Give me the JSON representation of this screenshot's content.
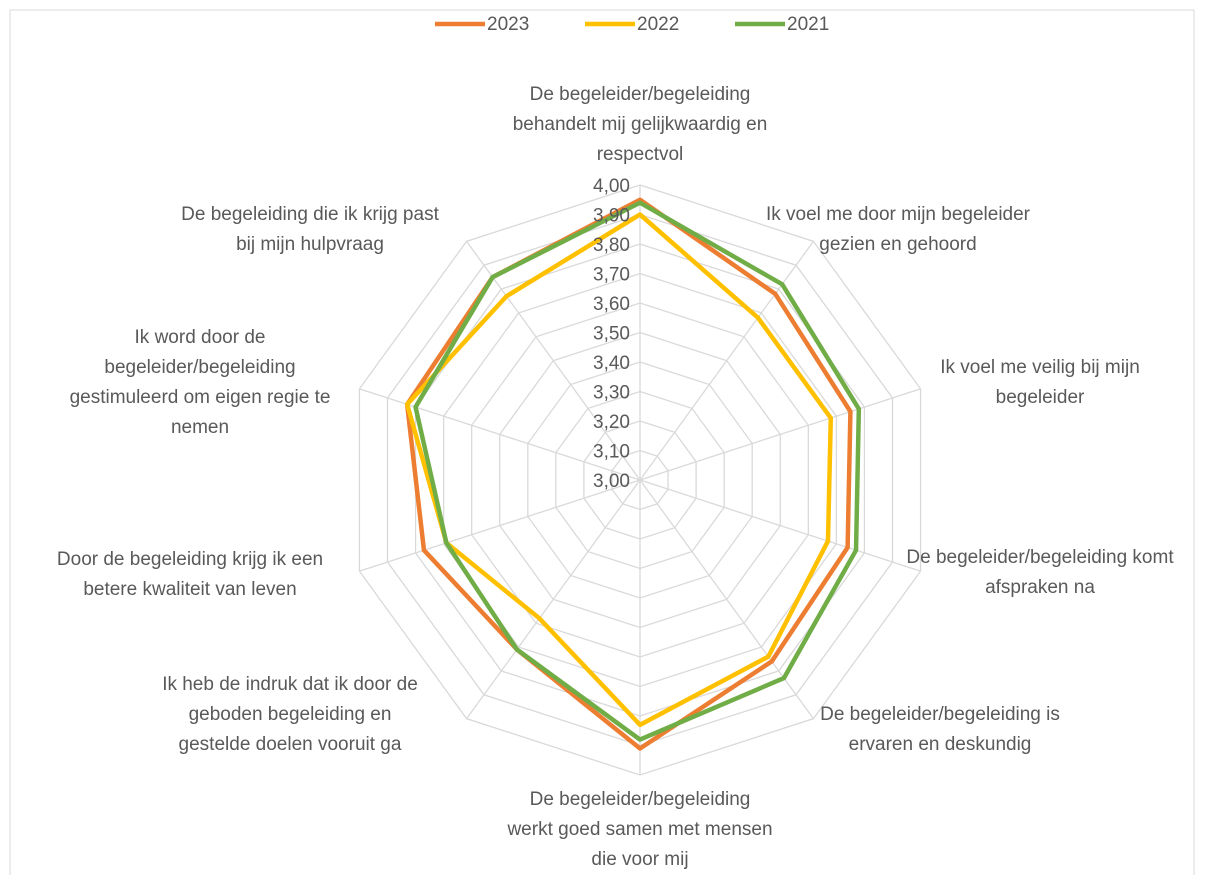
{
  "chart_data": {
    "type": "radar",
    "categories": [
      "De begeleider/begeleiding behandelt mij gelijkwaardig en respectvol",
      "Ik voel me door mijn begeleider gezien en gehoord",
      "Ik voel me veilig bij mijn begeleider",
      "De begeleider/begeleiding komt afspraken na",
      "De begeleider/begeleiding is ervaren en deskundig",
      "De begeleider/begeleiding werkt goed samen met mensen die voor mij",
      "Ik heb de indruk dat ik door de geboden begeleiding en gestelde doelen vooruit ga",
      "Door de begeleiding krijg ik een betere kwaliteit van leven",
      "Ik word door de begeleider/begeleiding gestimuleerd om eigen regie te nemen",
      "De begeleiding die ik krijg past bij mijn hulpvraag"
    ],
    "series": [
      {
        "name": "2023",
        "color": "#ed7d31",
        "values": [
          3.95,
          3.78,
          3.75,
          3.74,
          3.76,
          3.91,
          3.71,
          3.77,
          3.83,
          3.85
        ]
      },
      {
        "name": "2022",
        "color": "#ffc000",
        "values": [
          3.9,
          3.68,
          3.68,
          3.67,
          3.74,
          3.83,
          3.58,
          3.69,
          3.83,
          3.77
        ]
      },
      {
        "name": "2021",
        "color": "#70ad47",
        "values": [
          3.94,
          3.82,
          3.78,
          3.77,
          3.83,
          3.88,
          3.71,
          3.69,
          3.8,
          3.85
        ]
      }
    ],
    "ylim": [
      3.0,
      4.0
    ],
    "yticks": [
      {
        "value": 3.0,
        "label": "3,00"
      },
      {
        "value": 3.1,
        "label": "3,10"
      },
      {
        "value": 3.2,
        "label": "3,20"
      },
      {
        "value": 3.3,
        "label": "3,30"
      },
      {
        "value": 3.4,
        "label": "3,40"
      },
      {
        "value": 3.5,
        "label": "3,50"
      },
      {
        "value": 3.6,
        "label": "3,60"
      },
      {
        "value": 3.7,
        "label": "3,70"
      },
      {
        "value": 3.8,
        "label": "3,80"
      },
      {
        "value": 3.9,
        "label": "3,90"
      },
      {
        "value": 4.0,
        "label": "4,00"
      }
    ],
    "grid": true,
    "legend": "top"
  }
}
